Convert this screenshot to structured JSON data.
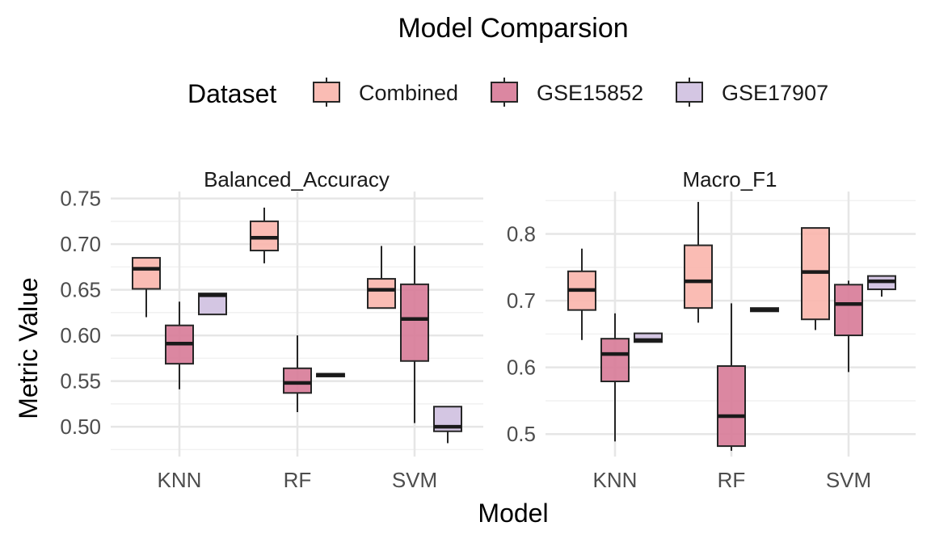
{
  "chart_data": {
    "type": "boxplot",
    "title": "Model Comparsion",
    "xlabel": "Model",
    "ylabel": "Metric Value",
    "legend": {
      "title": "Dataset",
      "position": "top",
      "entries": [
        "Combined",
        "GSE15852",
        "GSE17907"
      ]
    },
    "colors": {
      "Combined": "#F9B5AC",
      "GSE15852": "#D77A97",
      "GSE17907": "#CFC0E0",
      "outline": "#262626",
      "grid_major": "#E6E6E6",
      "grid_minor": "#F1F1F1"
    },
    "categories": [
      "KNN",
      "RF",
      "SVM"
    ],
    "grid": true,
    "panels": [
      {
        "name": "Balanced_Accuracy",
        "ylim": [
          0.47,
          0.755
        ],
        "yticks": [
          0.5,
          0.55,
          0.6,
          0.65,
          0.7,
          0.75
        ],
        "ytick_labels": [
          "0.50",
          "0.55",
          "0.60",
          "0.65",
          "0.70",
          "0.75"
        ],
        "series": [
          {
            "name": "Combined",
            "boxes": [
              {
                "x": "KNN",
                "min": 0.62,
                "q1": 0.651,
                "median": 0.673,
                "q3": 0.685,
                "max": 0.685
              },
              {
                "x": "RF",
                "min": 0.679,
                "q1": 0.693,
                "median": 0.707,
                "q3": 0.725,
                "max": 0.74
              },
              {
                "x": "SVM",
                "min": 0.63,
                "q1": 0.63,
                "median": 0.65,
                "q3": 0.662,
                "max": 0.698
              }
            ]
          },
          {
            "name": "GSE15852",
            "boxes": [
              {
                "x": "KNN",
                "min": 0.541,
                "q1": 0.569,
                "median": 0.591,
                "q3": 0.611,
                "max": 0.637
              },
              {
                "x": "RF",
                "min": 0.516,
                "q1": 0.537,
                "median": 0.548,
                "q3": 0.564,
                "max": 0.6
              },
              {
                "x": "SVM",
                "min": 0.504,
                "q1": 0.572,
                "median": 0.618,
                "q3": 0.656,
                "max": 0.698
              }
            ]
          },
          {
            "name": "GSE17907",
            "boxes": [
              {
                "x": "KNN",
                "min": 0.623,
                "q1": 0.623,
                "median": 0.644,
                "q3": 0.646,
                "max": 0.646
              },
              {
                "x": "RF",
                "min": 0.555,
                "q1": 0.555,
                "median": 0.557,
                "q3": 0.558,
                "max": 0.558
              },
              {
                "x": "SVM",
                "min": 0.482,
                "q1": 0.495,
                "median": 0.5,
                "q3": 0.522,
                "max": 0.522
              }
            ]
          }
        ]
      },
      {
        "name": "Macro_F1",
        "ylim": [
          0.47,
          0.86
        ],
        "yticks": [
          0.5,
          0.6,
          0.7,
          0.8
        ],
        "ytick_labels": [
          "0.5",
          "0.6",
          "0.7",
          "0.8"
        ],
        "series": [
          {
            "name": "Combined",
            "boxes": [
              {
                "x": "KNN",
                "min": 0.641,
                "q1": 0.686,
                "median": 0.716,
                "q3": 0.744,
                "max": 0.778
              },
              {
                "x": "RF",
                "min": 0.667,
                "q1": 0.689,
                "median": 0.729,
                "q3": 0.783,
                "max": 0.848
              },
              {
                "x": "SVM",
                "min": 0.656,
                "q1": 0.672,
                "median": 0.743,
                "q3": 0.809,
                "max": 0.809
              }
            ]
          },
          {
            "name": "GSE15852",
            "boxes": [
              {
                "x": "KNN",
                "min": 0.489,
                "q1": 0.579,
                "median": 0.62,
                "q3": 0.643,
                "max": 0.681
              },
              {
                "x": "RF",
                "min": 0.475,
                "q1": 0.482,
                "median": 0.527,
                "q3": 0.602,
                "max": 0.696
              },
              {
                "x": "SVM",
                "min": 0.593,
                "q1": 0.648,
                "median": 0.695,
                "q3": 0.724,
                "max": 0.73
              }
            ]
          },
          {
            "name": "GSE17907",
            "boxes": [
              {
                "x": "KNN",
                "min": 0.638,
                "q1": 0.638,
                "median": 0.641,
                "q3": 0.651,
                "max": 0.651
              },
              {
                "x": "RF",
                "min": 0.684,
                "q1": 0.684,
                "median": 0.686,
                "q3": 0.689,
                "max": 0.689
              },
              {
                "x": "SVM",
                "min": 0.706,
                "q1": 0.717,
                "median": 0.729,
                "q3": 0.737,
                "max": 0.737
              }
            ]
          }
        ]
      }
    ]
  }
}
